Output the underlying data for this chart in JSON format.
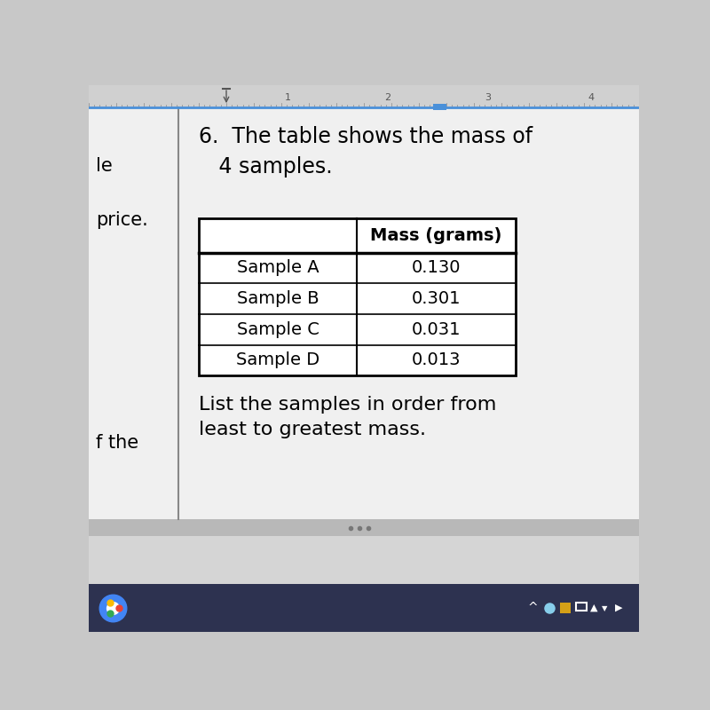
{
  "title_number": "6.",
  "title_text": "The table shows the mass of\n   4 samples.",
  "col_header": "Mass (grams)",
  "rows": [
    {
      "label": "Sample A",
      "value": "0.130"
    },
    {
      "label": "Sample B",
      "value": "0.301"
    },
    {
      "label": "Sample C",
      "value": "0.031"
    },
    {
      "label": "Sample D",
      "value": "0.013"
    }
  ],
  "footnote": "List the samples in order from\nleast to greatest mass.",
  "sidebar_texts": [
    "le",
    "price.",
    "f the"
  ],
  "os_bg": "#c8c8c8",
  "doc_bg": "#f0f0f0",
  "white": "#ffffff",
  "text_color": "#000000",
  "ruler_bg": "#d0d0d0",
  "ruler_line": "#4a90d9",
  "taskbar_bg": "#1a1a2e",
  "sidebar_line": "#888888",
  "title_fontsize": 17,
  "table_fontsize": 14,
  "footnote_fontsize": 16,
  "sidebar_fontsize": 15
}
